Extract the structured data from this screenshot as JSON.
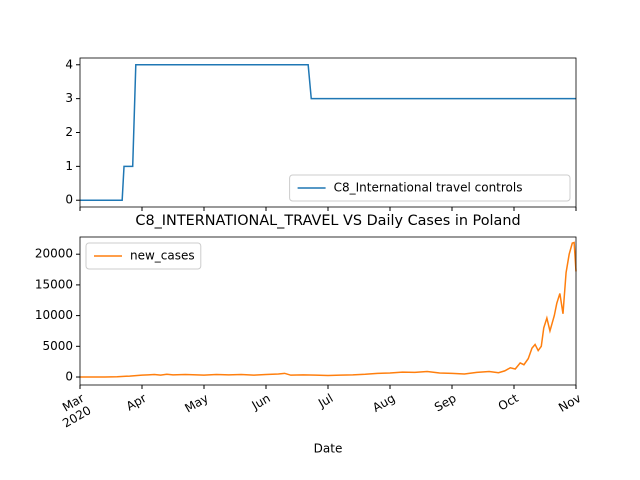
{
  "chart_data": [
    {
      "type": "line",
      "series": [
        {
          "name": "C8_International travel controls",
          "color": "#1f77b4",
          "x": [
            0,
            0.68,
            0.71,
            0.85,
            0.9,
            3.68,
            3.73,
            8
          ],
          "values": [
            0,
            0,
            1,
            1,
            4,
            4,
            3,
            3
          ]
        }
      ],
      "xlim": [
        0,
        8
      ],
      "ylim": [
        -0.2,
        4.2
      ],
      "yticks": [
        0,
        1,
        2,
        3,
        4
      ],
      "legend": "lower right"
    },
    {
      "type": "line",
      "title": "C8_INTERNATIONAL_TRAVEL VS Daily Cases in Poland",
      "xlabel": "Date",
      "series": [
        {
          "name": "new_cases",
          "color": "#ff7f0e",
          "x": [
            0,
            0.2,
            0.4,
            0.6,
            0.8,
            1.0,
            1.1,
            1.2,
            1.3,
            1.4,
            1.5,
            1.7,
            2.0,
            2.2,
            2.4,
            2.6,
            2.8,
            3.0,
            3.2,
            3.3,
            3.4,
            3.6,
            3.8,
            4.0,
            4.2,
            4.4,
            4.6,
            4.8,
            5.0,
            5.2,
            5.4,
            5.6,
            5.8,
            6.0,
            6.2,
            6.4,
            6.6,
            6.75,
            6.85,
            6.94,
            7.02,
            7.1,
            7.16,
            7.23,
            7.29,
            7.34,
            7.39,
            7.44,
            7.48,
            7.53,
            7.58,
            7.65,
            7.69,
            7.74,
            7.79,
            7.84,
            7.89,
            7.94,
            7.97,
            8.0
          ],
          "values": [
            0,
            0,
            10,
            50,
            150,
            300,
            350,
            400,
            300,
            450,
            350,
            400,
            300,
            400,
            350,
            400,
            300,
            400,
            500,
            600,
            300,
            350,
            300,
            250,
            300,
            350,
            450,
            600,
            650,
            800,
            750,
            900,
            650,
            600,
            500,
            750,
            900,
            700,
            1000,
            1500,
            1300,
            2300,
            2000,
            3000,
            4700,
            5300,
            4300,
            5000,
            8000,
            9600,
            7500,
            10000,
            12000,
            13600,
            10300,
            17000,
            20000,
            21800,
            21900,
            17200
          ]
        }
      ],
      "xlim": [
        0,
        8
      ],
      "xticks": [
        {
          "value": 0,
          "label": "Mar\n2020"
        },
        {
          "value": 1,
          "label": "Apr"
        },
        {
          "value": 2,
          "label": "May"
        },
        {
          "value": 3,
          "label": "Jun"
        },
        {
          "value": 4,
          "label": "Jul"
        },
        {
          "value": 5,
          "label": "Aug"
        },
        {
          "value": 6,
          "label": "Sep"
        },
        {
          "value": 7,
          "label": "Oct"
        },
        {
          "value": 8,
          "label": "Nov"
        }
      ],
      "ylim": [
        -1300,
        22800
      ],
      "yticks": [
        0,
        5000,
        10000,
        15000,
        20000
      ],
      "legend": "upper left"
    }
  ]
}
